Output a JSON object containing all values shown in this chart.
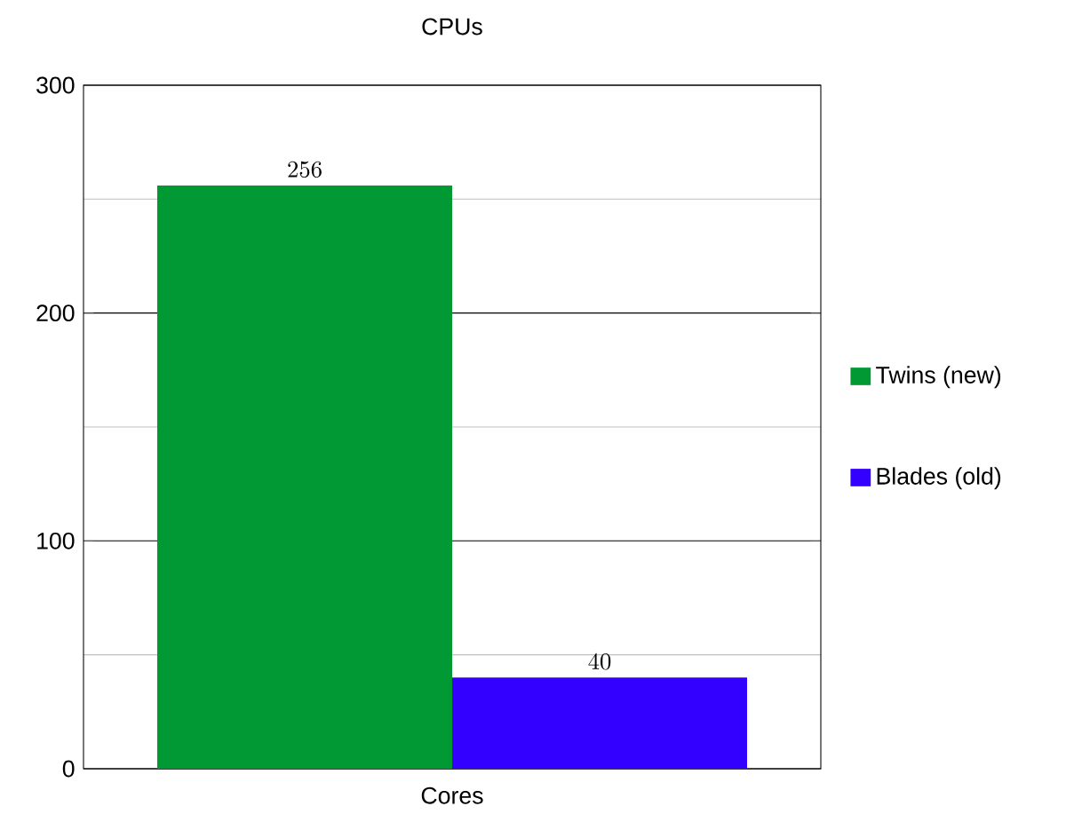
{
  "chart_data": {
    "type": "bar",
    "title": "CPUs",
    "categories": [
      "Cores"
    ],
    "series": [
      {
        "name": "Twins (new)",
        "color": "#009933",
        "values": [
          256
        ]
      },
      {
        "name": "Blades (old)",
        "color": "#3300ff",
        "values": [
          40
        ]
      }
    ],
    "ylim": [
      0,
      300
    ],
    "yticks": [
      0,
      {
        "value": 50,
        "label": null
      },
      100,
      {
        "value": 150,
        "label": null
      },
      200,
      {
        "value": 250,
        "label": null
      },
      300
    ],
    "grid": "y",
    "legend": "right",
    "data_labels": true
  }
}
